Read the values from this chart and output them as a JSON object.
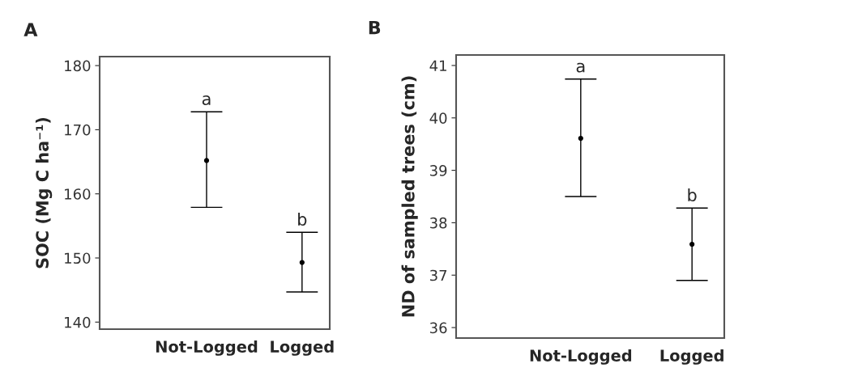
{
  "chart_data": [
    {
      "type": "scatter",
      "title": "A",
      "ylabel": "SOC (Mg C ha⁻¹)",
      "categories": [
        "Not-Logged",
        "Logged"
      ],
      "values": [
        165.2,
        149.3
      ],
      "errors": [
        [
          157.9,
          172.8
        ],
        [
          144.7,
          154.0
        ]
      ],
      "color": "#000000",
      "marker": "circle",
      "ylim": [
        138.9,
        181.4
      ],
      "yticks": [
        140,
        150,
        160,
        170,
        180
      ],
      "grid": false,
      "legend": false,
      "annotations": [
        {
          "text": "a",
          "x": "Not-Logged",
          "y": 172.8
        },
        {
          "text": "b",
          "x": "Logged",
          "y": 154.0
        }
      ]
    },
    {
      "type": "scatter",
      "title": "B",
      "ylabel": "ND of sampled trees (cm)",
      "categories": [
        "Not-Logged",
        "Logged"
      ],
      "values": [
        39.61,
        37.59
      ],
      "errors": [
        [
          38.5,
          40.74
        ],
        [
          36.9,
          38.28
        ]
      ],
      "color": "#000000",
      "marker": "circle",
      "ylim": [
        35.8,
        41.2
      ],
      "yticks": [
        36,
        37,
        38,
        39,
        40,
        41
      ],
      "grid": false,
      "legend": false,
      "annotations": [
        {
          "text": "a",
          "x": "Not-Logged",
          "y": 40.74
        },
        {
          "text": "b",
          "x": "Logged",
          "y": 38.28
        }
      ]
    }
  ]
}
